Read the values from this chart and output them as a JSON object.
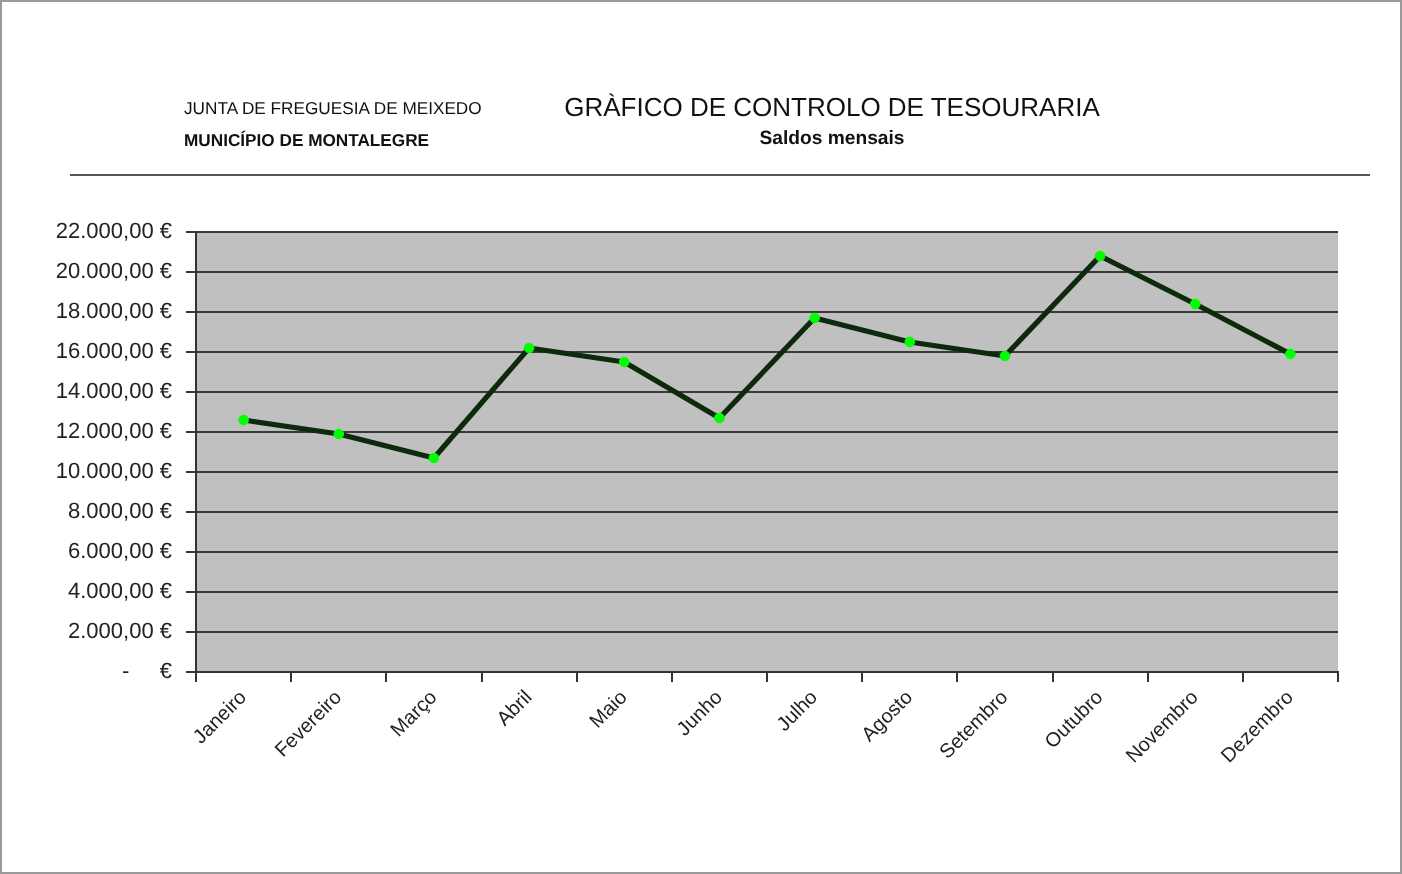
{
  "chart_data": {
    "type": "line",
    "title": "GRÀFICO DE CONTROLO DE TESOURARIA",
    "subtitle": "Saldos mensais",
    "annotations": [
      "JUNTA DE FREGUESIA DE MEIXEDO",
      "MUNICÍPIO DE MONTALEGRE"
    ],
    "categories": [
      "Janeiro",
      "Fevereiro",
      "Março",
      "Abril",
      "Maio",
      "Junho",
      "Julho",
      "Agosto",
      "Setembro",
      "Outubro",
      "Novembro",
      "Dezembro"
    ],
    "series": [
      {
        "color": "#0d2a0d",
        "colors": [
          "#00ff00",
          "#00ff00",
          "#00ff00",
          "#00ff00",
          "#00ff00",
          "#00ff00",
          "#00ff00",
          "#00ff00",
          "#00ff00",
          "#00ff00",
          "#00ff00",
          "#00ff00"
        ],
        "values": [
          12600,
          11900,
          10700,
          16200,
          15500,
          12700,
          17700,
          16500,
          15800,
          20800,
          18400,
          15900
        ]
      }
    ],
    "ylim": [
      0,
      22000
    ],
    "yticks": [
      {
        "value": 0,
        "label": "-     €"
      },
      {
        "value": 2000,
        "label": "2.000,00 €"
      },
      {
        "value": 4000,
        "label": "4.000,00 €"
      },
      {
        "value": 6000,
        "label": "6.000,00 €"
      },
      {
        "value": 8000,
        "label": "8.000,00 €"
      },
      {
        "value": 10000,
        "label": "10.000,00 €"
      },
      {
        "value": 12000,
        "label": "12.000,00 €"
      },
      {
        "value": 14000,
        "label": "14.000,00 €"
      },
      {
        "value": 16000,
        "label": "16.000,00 €"
      },
      {
        "value": 18000,
        "label": "18.000,00 €"
      },
      {
        "value": 20000,
        "label": "20.000,00 €"
      },
      {
        "value": 22000,
        "label": "22.000,00 €"
      }
    ],
    "grid": "y",
    "marker": "circle",
    "line_style": "solid"
  }
}
